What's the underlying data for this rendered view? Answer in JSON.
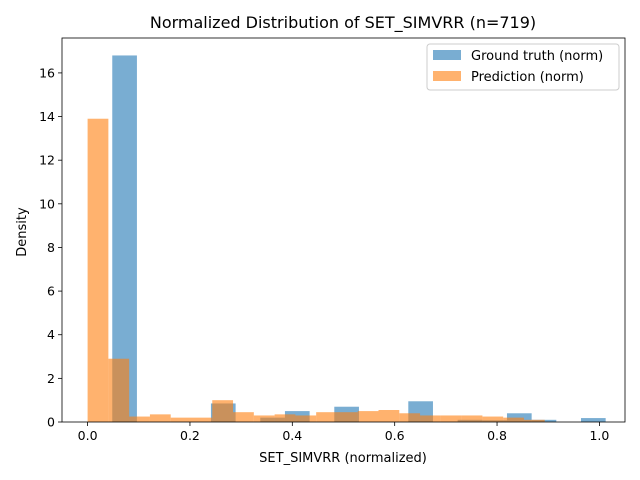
{
  "chart_data": {
    "type": "bar",
    "title": "Normalized Distribution of SET_SIMVRR (n=719)",
    "xlabel": "SET_SIMVRR (normalized)",
    "ylabel": "Density",
    "xlim": [
      -0.05,
      1.05
    ],
    "ylim": [
      0,
      17.6
    ],
    "xticks": [
      "0.0",
      "0.2",
      "0.4",
      "0.6",
      "0.8",
      "1.0"
    ],
    "yticks": [
      "0",
      "2",
      "4",
      "6",
      "8",
      "10",
      "12",
      "14",
      "16"
    ],
    "grid": false,
    "legend_position": "top-right",
    "series": [
      {
        "name": "Ground truth (norm)",
        "color": "#1f77b4",
        "opacity": 0.6,
        "bin_edges": [
          0.0,
          0.0482,
          0.0964,
          0.1446,
          0.1928,
          0.241,
          0.2892,
          0.3374,
          0.3856,
          0.4338,
          0.482,
          0.5302,
          0.5784,
          0.6266,
          0.6748,
          0.723,
          0.7712,
          0.8194,
          0.8676,
          0.9158,
          0.964,
          1.0122
        ],
        "values": [
          0.0,
          16.8,
          0.0,
          0.0,
          0.0,
          0.85,
          0.0,
          0.2,
          0.5,
          0.0,
          0.7,
          0.0,
          0.0,
          0.95,
          0.0,
          0.1,
          0.08,
          0.4,
          0.1,
          0.0,
          0.18
        ]
      },
      {
        "name": "Prediction (norm)",
        "color": "#ff7f0e",
        "opacity": 0.6,
        "bin_edges": [
          0.0,
          0.0406,
          0.0812,
          0.1218,
          0.1624,
          0.203,
          0.2436,
          0.2842,
          0.3248,
          0.3654,
          0.406,
          0.4466,
          0.4872,
          0.5278,
          0.5684,
          0.609,
          0.6496,
          0.6902,
          0.7308,
          0.7714,
          0.812,
          0.8526,
          0.8932
        ],
        "values": [
          13.9,
          2.9,
          0.25,
          0.35,
          0.2,
          0.2,
          1.0,
          0.45,
          0.3,
          0.35,
          0.3,
          0.45,
          0.45,
          0.5,
          0.55,
          0.4,
          0.3,
          0.3,
          0.3,
          0.25,
          0.2,
          0.1
        ]
      }
    ]
  }
}
